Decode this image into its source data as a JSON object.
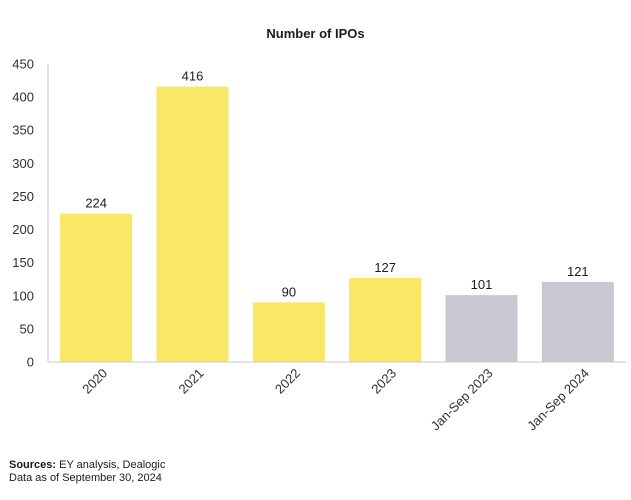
{
  "chart_data": {
    "type": "bar",
    "title": "Number of IPOs",
    "categories": [
      "2020",
      "2021",
      "2022",
      "2023",
      "Jan-Sep 2023",
      "Jan-Sep 2024"
    ],
    "values": [
      224,
      416,
      90,
      127,
      101,
      121
    ],
    "bar_colors": [
      "#f9e866",
      "#f9e866",
      "#f9e866",
      "#f9e866",
      "#c8c8d0",
      "#c8c8d0"
    ],
    "ylim": [
      0,
      450
    ],
    "yticks": [
      0,
      50,
      100,
      150,
      200,
      250,
      300,
      350,
      400,
      450
    ],
    "xlabel": "",
    "ylabel": "",
    "grid": false,
    "legend": "none"
  },
  "footnote": {
    "sources_label": "Sources:",
    "sources_text": " EY analysis, Dealogic",
    "data_as_of": "Data as of September 30, 2024"
  },
  "colors": {
    "accent_yellow": "#f9e866",
    "accent_grey": "#c8c8d0",
    "axis": "#c8c8d0"
  }
}
